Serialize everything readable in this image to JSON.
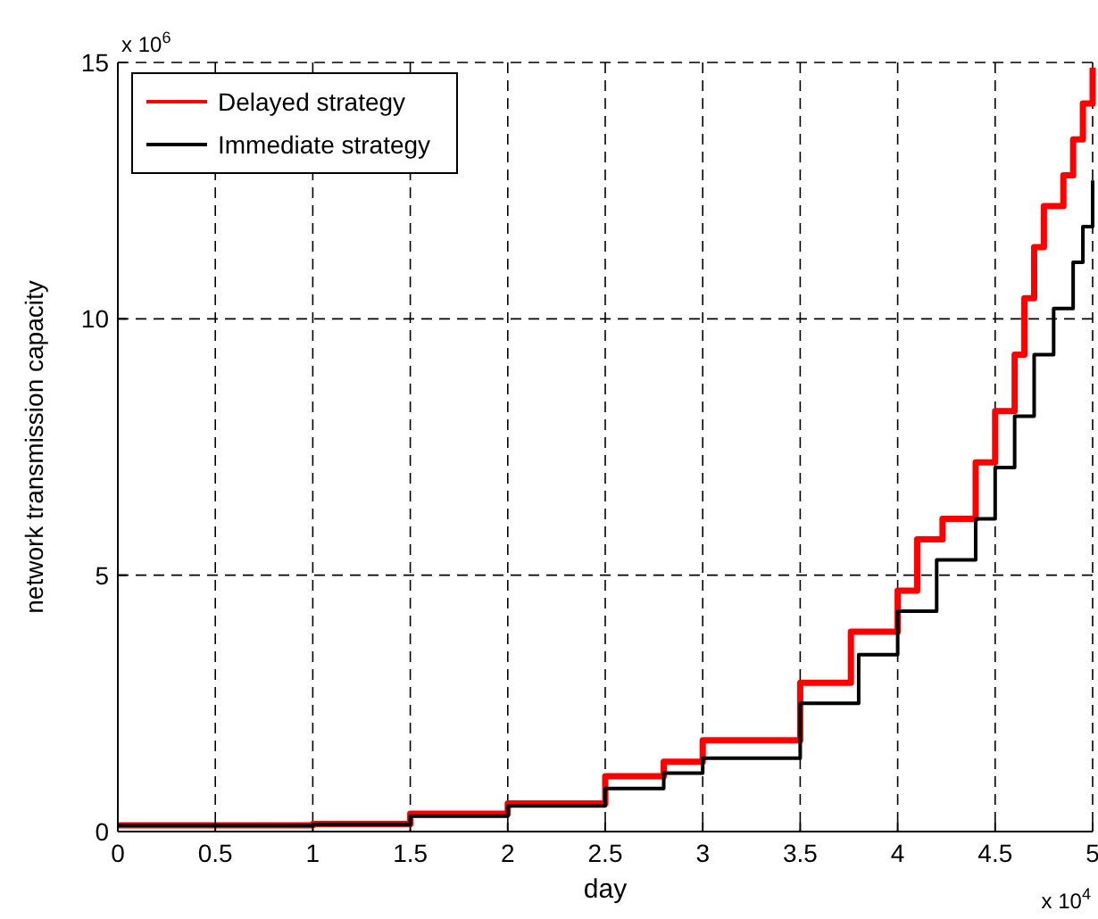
{
  "chart_data": {
    "type": "step",
    "xlabel": "day",
    "ylabel": "network transmission capacity",
    "annotations": [
      "x 10$^{6}$",
      "x 10$^{4}$"
    ],
    "xlim": [
      0,
      5
    ],
    "ylim": [
      0,
      15
    ],
    "xticks": [
      0,
      0.5,
      1,
      1.5,
      2,
      2.5,
      3,
      3.5,
      4,
      4.5,
      5
    ],
    "yticks": [
      0,
      5,
      10,
      15
    ],
    "grid": true,
    "legend": "top left",
    "line_style": "solid",
    "series": [
      {
        "name": "Delayed strategy",
        "color": "#ff0000",
        "x": [
          0,
          0.9,
          1,
          1.5,
          2,
          2.5,
          2.8,
          3,
          3.5,
          3.76,
          4,
          4.1,
          4.23,
          4.4,
          4.5,
          4.6,
          4.65,
          4.7,
          4.75,
          4.85,
          4.9,
          4.95,
          5
        ],
        "values": [
          0.12,
          0.12,
          0.15,
          0.35,
          0.55,
          1.08,
          1.36,
          1.78,
          2.9,
          3.9,
          4.7,
          5.7,
          6.1,
          7.2,
          8.2,
          9.3,
          10.4,
          11.4,
          12.2,
          12.8,
          13.5,
          14.2,
          14.9
        ]
      },
      {
        "name": "Immediate strategy",
        "color": "#000000",
        "x": [
          0,
          0.9,
          1,
          1.5,
          2,
          2.5,
          2.8,
          3,
          3.5,
          3.8,
          4,
          4.2,
          4.4,
          4.5,
          4.6,
          4.7,
          4.8,
          4.9,
          4.95,
          5
        ],
        "values": [
          0.12,
          0.12,
          0.14,
          0.3,
          0.5,
          0.84,
          1.14,
          1.43,
          2.5,
          3.45,
          4.3,
          5.3,
          6.1,
          7.1,
          8.1,
          9.3,
          10.2,
          11.1,
          11.8,
          12.7
        ]
      }
    ]
  }
}
